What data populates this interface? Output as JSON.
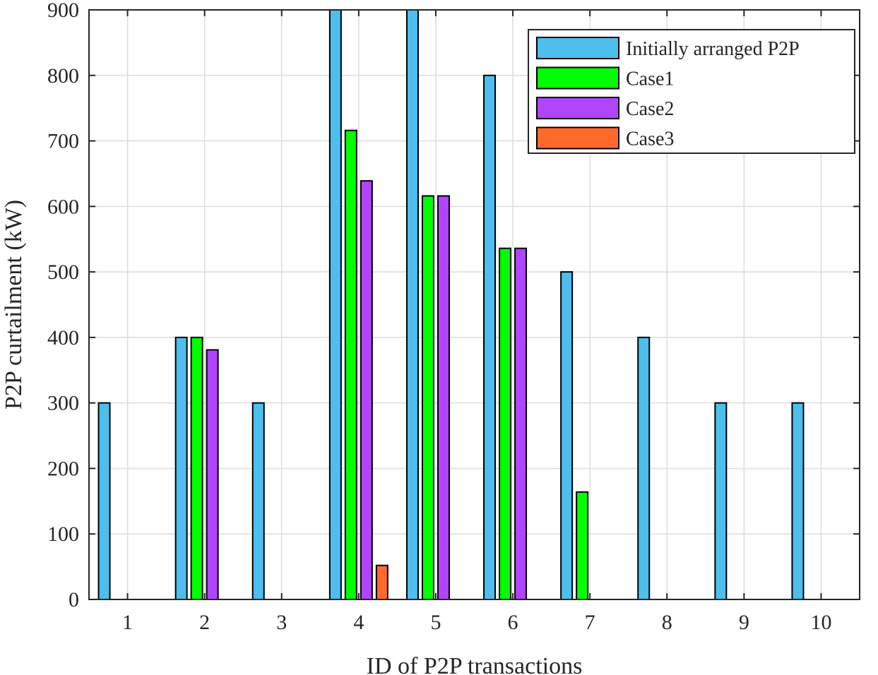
{
  "chart_data": {
    "type": "bar",
    "title": "",
    "xlabel": "ID of P2P transactions",
    "ylabel": "P2P curtailment (kW)",
    "categories": [
      "1",
      "2",
      "3",
      "4",
      "5",
      "6",
      "7",
      "8",
      "9",
      "10"
    ],
    "ylim": [
      0,
      900
    ],
    "yticks": [
      0,
      100,
      200,
      300,
      400,
      500,
      600,
      700,
      800,
      900
    ],
    "grid": true,
    "legend_position": "top-right",
    "series": [
      {
        "name": "Initially arranged P2P",
        "color": "#4DBEEE",
        "values": [
          300,
          400,
          300,
          900,
          900,
          800,
          500,
          400,
          300,
          300
        ]
      },
      {
        "name": "Case1",
        "color": "#00FF00",
        "values": [
          0,
          400,
          0,
          716,
          616,
          536,
          164,
          0,
          0,
          0
        ]
      },
      {
        "name": "Case2",
        "color": "#B044FF",
        "values": [
          0,
          381,
          0,
          639,
          616,
          536,
          0,
          0,
          0,
          0
        ]
      },
      {
        "name": "Case3",
        "color": "#FF6A2B",
        "values": [
          0,
          0,
          0,
          52,
          0,
          0,
          0,
          0,
          0,
          0
        ]
      }
    ]
  }
}
